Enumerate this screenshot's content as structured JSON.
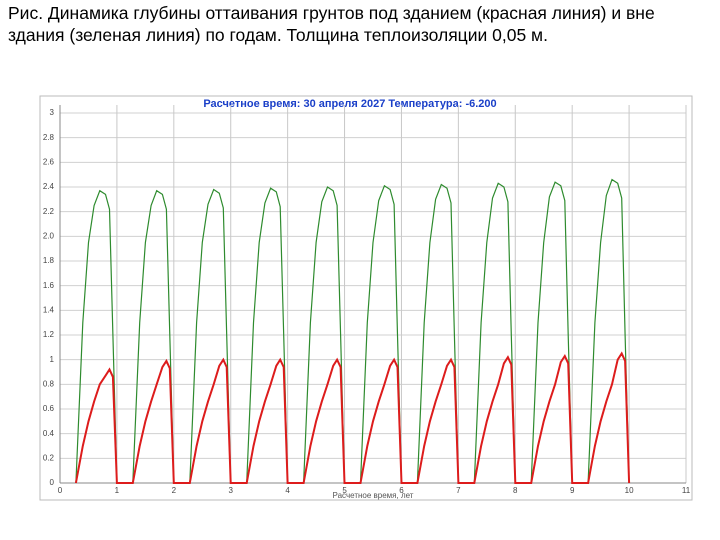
{
  "caption": "Рис. Динамика глубины оттаивания грунтов под зданием (красная линия) и вне здания (зеленая линия) по годам. Толщина теплоизоляции 0,05 м.",
  "chart_data": {
    "type": "line",
    "title": "Расчетное время: 30 апреля 2027 Температура: -6.200",
    "x_label": "Расчетное время, лет",
    "x": [
      0.28,
      0.4,
      0.5,
      0.6,
      0.7,
      0.8,
      0.87,
      0.93,
      1,
      1.28,
      1.4,
      1.5,
      1.6,
      1.7,
      1.8,
      1.87,
      1.93,
      2,
      2.28,
      2.4,
      2.5,
      2.6,
      2.7,
      2.8,
      2.87,
      2.93,
      3,
      3.28,
      3.4,
      3.5,
      3.6,
      3.7,
      3.8,
      3.87,
      3.93,
      4,
      4.28,
      4.4,
      4.5,
      4.6,
      4.7,
      4.8,
      4.87,
      4.93,
      5,
      5.28,
      5.4,
      5.5,
      5.6,
      5.7,
      5.8,
      5.87,
      5.93,
      6,
      6.28,
      6.4,
      6.5,
      6.6,
      6.7,
      6.8,
      6.87,
      6.93,
      7,
      7.28,
      7.4,
      7.5,
      7.6,
      7.7,
      7.8,
      7.87,
      7.93,
      8,
      8.28,
      8.4,
      8.5,
      8.6,
      8.7,
      8.8,
      8.87,
      8.93,
      9,
      9.28,
      9.4,
      9.5,
      9.6,
      9.7,
      9.8,
      9.87,
      9.93,
      10
    ],
    "series": [
      {
        "color": "#2e8b2e",
        "values": [
          0,
          1.3,
          1.95,
          2.25,
          2.37,
          2.34,
          2.22,
          1.2,
          0,
          0,
          1.3,
          1.95,
          2.25,
          2.37,
          2.34,
          2.22,
          1.2,
          0,
          0,
          1.3,
          1.95,
          2.26,
          2.38,
          2.35,
          2.23,
          1.2,
          0,
          0,
          1.3,
          1.95,
          2.27,
          2.39,
          2.36,
          2.24,
          1.2,
          0,
          0,
          1.3,
          1.95,
          2.28,
          2.4,
          2.37,
          2.25,
          1.2,
          0,
          0,
          1.3,
          1.95,
          2.29,
          2.41,
          2.38,
          2.26,
          1.2,
          0,
          0,
          1.3,
          1.95,
          2.3,
          2.42,
          2.39,
          2.27,
          1.2,
          0,
          0,
          1.3,
          1.95,
          2.31,
          2.43,
          2.4,
          2.28,
          1.2,
          0,
          0,
          1.3,
          1.95,
          2.32,
          2.44,
          2.41,
          2.29,
          1.2,
          0,
          0,
          1.3,
          1.95,
          2.33,
          2.46,
          2.43,
          2.31,
          1.2,
          0
        ]
      },
      {
        "color": "#dd1c1c",
        "values": [
          0,
          0.3,
          0.5,
          0.66,
          0.8,
          0.87,
          0.92,
          0.86,
          0,
          0,
          0.3,
          0.5,
          0.66,
          0.8,
          0.94,
          0.99,
          0.93,
          0,
          0,
          0.3,
          0.5,
          0.66,
          0.8,
          0.95,
          1,
          0.94,
          0,
          0,
          0.3,
          0.5,
          0.66,
          0.8,
          0.95,
          1,
          0.94,
          0,
          0,
          0.3,
          0.5,
          0.66,
          0.8,
          0.95,
          1,
          0.94,
          0,
          0,
          0.3,
          0.5,
          0.66,
          0.8,
          0.95,
          1,
          0.94,
          0,
          0,
          0.3,
          0.5,
          0.66,
          0.8,
          0.95,
          1,
          0.94,
          0,
          0,
          0.3,
          0.5,
          0.66,
          0.8,
          0.97,
          1.02,
          0.96,
          0,
          0,
          0.3,
          0.5,
          0.66,
          0.8,
          0.98,
          1.03,
          0.97,
          0,
          0,
          0.3,
          0.5,
          0.66,
          0.8,
          1,
          1.05,
          0.99,
          0
        ]
      }
    ],
    "xlim": [
      0,
      11
    ],
    "xticks": [
      0,
      1,
      2,
      3,
      4,
      5,
      6,
      7,
      8,
      9,
      10,
      11
    ],
    "ylim": [
      0,
      3
    ],
    "yticks": [
      0,
      0.2,
      0.4,
      0.6,
      0.8,
      1,
      1.2,
      1.4,
      1.6,
      1.8,
      {
        "value": 2,
        "label": "2.0"
      },
      2.2,
      2.4,
      2.6,
      2.8,
      3
    ],
    "grid": true
  }
}
